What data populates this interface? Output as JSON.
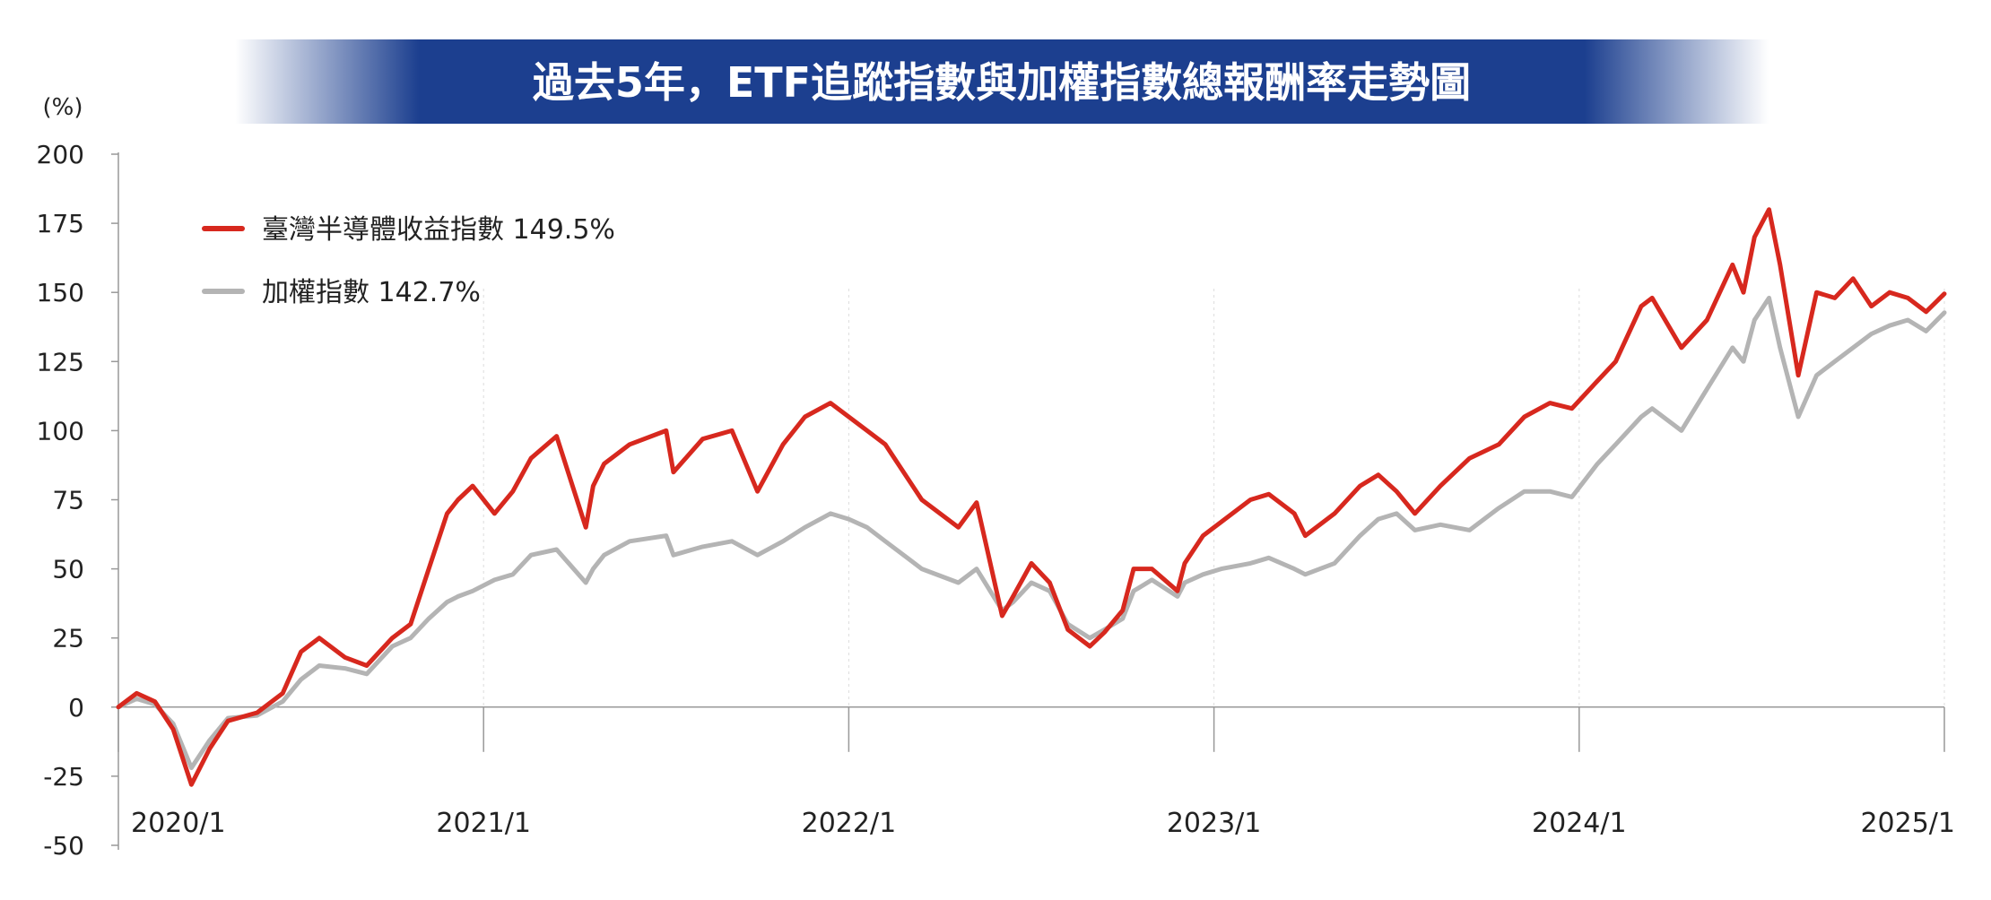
{
  "title": "過去5年，ETF追蹤指數與加權指數總報酬率走勢圖",
  "colors": {
    "title_band": "#1c3f8f",
    "title_text": "#ffffff",
    "axis": "#999999",
    "axis_text": "#222222",
    "grid": "#dddddd"
  },
  "chart_data": {
    "type": "line",
    "ylabel": "(%)",
    "xlabel": "",
    "ylim": [
      -50,
      200
    ],
    "yticks": [
      -50,
      -25,
      0,
      25,
      50,
      75,
      100,
      125,
      150,
      175,
      200
    ],
    "ytick_labels": [
      "-50",
      "-25",
      "0",
      "25",
      "50",
      "75",
      "100",
      "125",
      "150",
      "175",
      "200"
    ],
    "xlim": [
      2020.0,
      2025.0
    ],
    "xticks": [
      2020.0,
      2021.0,
      2022.0,
      2023.0,
      2024.0,
      2025.0
    ],
    "xtick_labels": [
      "2020/1",
      "2021/1",
      "2022/1",
      "2023/1",
      "2024/1",
      "2025/1"
    ],
    "grid": "vertical dotted lines at year ticks",
    "legend_position": "top-left",
    "series": [
      {
        "name": "臺灣半導體收益指數",
        "final_label": "149.5%",
        "color": "#d7281e",
        "x": [
          2020.0,
          2020.05,
          2020.1,
          2020.15,
          2020.2,
          2020.25,
          2020.3,
          2020.38,
          2020.45,
          2020.5,
          2020.55,
          2020.62,
          2020.68,
          2020.75,
          2020.8,
          2020.85,
          2020.9,
          2020.93,
          2020.97,
          2021.03,
          2021.08,
          2021.13,
          2021.2,
          2021.28,
          2021.3,
          2021.33,
          2021.4,
          2021.5,
          2021.52,
          2021.6,
          2021.68,
          2021.75,
          2021.82,
          2021.88,
          2021.95,
          2022.0,
          2022.05,
          2022.1,
          2022.2,
          2022.3,
          2022.35,
          2022.42,
          2022.45,
          2022.5,
          2022.55,
          2022.6,
          2022.66,
          2022.7,
          2022.75,
          2022.78,
          2022.83,
          2022.9,
          2022.92,
          2022.97,
          2023.02,
          2023.1,
          2023.15,
          2023.22,
          2023.25,
          2023.33,
          2023.4,
          2023.45,
          2023.5,
          2023.55,
          2023.62,
          2023.7,
          2023.78,
          2023.85,
          2023.92,
          2023.98,
          2024.05,
          2024.1,
          2024.17,
          2024.2,
          2024.28,
          2024.35,
          2024.42,
          2024.45,
          2024.48,
          2024.52,
          2024.55,
          2024.6,
          2024.65,
          2024.7,
          2024.75,
          2024.8,
          2024.85,
          2024.9,
          2024.95,
          2025.0
        ],
        "y": [
          0,
          5,
          2,
          -8,
          -28,
          -15,
          -5,
          -2,
          5,
          20,
          25,
          18,
          15,
          25,
          30,
          50,
          70,
          75,
          80,
          70,
          78,
          90,
          98,
          65,
          80,
          88,
          95,
          100,
          85,
          97,
          100,
          78,
          95,
          105,
          110,
          105,
          100,
          95,
          75,
          65,
          74,
          33,
          40,
          52,
          45,
          28,
          22,
          27,
          35,
          50,
          50,
          42,
          52,
          62,
          67,
          75,
          77,
          70,
          62,
          70,
          80,
          84,
          78,
          70,
          80,
          90,
          95,
          105,
          110,
          108,
          118,
          125,
          145,
          148,
          130,
          140,
          160,
          150,
          170,
          180,
          160,
          120,
          150,
          148,
          155,
          145,
          150,
          148,
          143,
          149.5
        ]
      },
      {
        "name": "加權指數",
        "final_label": "142.7%",
        "color": "#b4b4b4",
        "x": [
          2020.0,
          2020.05,
          2020.1,
          2020.15,
          2020.2,
          2020.25,
          2020.3,
          2020.38,
          2020.45,
          2020.5,
          2020.55,
          2020.62,
          2020.68,
          2020.75,
          2020.8,
          2020.85,
          2020.9,
          2020.93,
          2020.97,
          2021.03,
          2021.08,
          2021.13,
          2021.2,
          2021.28,
          2021.3,
          2021.33,
          2021.4,
          2021.5,
          2021.52,
          2021.6,
          2021.68,
          2021.75,
          2021.82,
          2021.88,
          2021.95,
          2022.0,
          2022.05,
          2022.1,
          2022.2,
          2022.3,
          2022.35,
          2022.42,
          2022.45,
          2022.5,
          2022.55,
          2022.6,
          2022.66,
          2022.7,
          2022.75,
          2022.78,
          2022.83,
          2022.9,
          2022.92,
          2022.97,
          2023.02,
          2023.1,
          2023.15,
          2023.22,
          2023.25,
          2023.33,
          2023.4,
          2023.45,
          2023.5,
          2023.55,
          2023.62,
          2023.7,
          2023.78,
          2023.85,
          2023.92,
          2023.98,
          2024.05,
          2024.1,
          2024.17,
          2024.2,
          2024.28,
          2024.35,
          2024.42,
          2024.45,
          2024.48,
          2024.52,
          2024.55,
          2024.6,
          2024.65,
          2024.7,
          2024.75,
          2024.8,
          2024.85,
          2024.9,
          2024.95,
          2025.0
        ],
        "y": [
          0,
          3,
          1,
          -6,
          -22,
          -12,
          -4,
          -3,
          2,
          10,
          15,
          14,
          12,
          22,
          25,
          32,
          38,
          40,
          42,
          46,
          48,
          55,
          57,
          45,
          50,
          55,
          60,
          62,
          55,
          58,
          60,
          55,
          60,
          65,
          70,
          68,
          65,
          60,
          50,
          45,
          50,
          35,
          38,
          45,
          42,
          30,
          25,
          28,
          32,
          42,
          46,
          40,
          45,
          48,
          50,
          52,
          54,
          50,
          48,
          52,
          62,
          68,
          70,
          64,
          66,
          64,
          72,
          78,
          78,
          76,
          88,
          95,
          105,
          108,
          100,
          115,
          130,
          125,
          140,
          148,
          130,
          105,
          120,
          125,
          130,
          135,
          138,
          140,
          136,
          142.7
        ]
      }
    ]
  }
}
